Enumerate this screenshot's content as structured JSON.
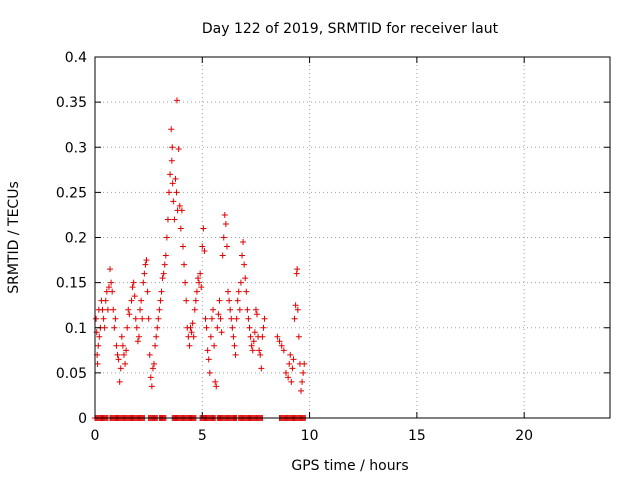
{
  "chart_data": {
    "type": "scatter",
    "title": "Day 122 of 2019, SRMTID for receiver laut",
    "xlabel": "GPS time / hours",
    "ylabel": "SRMTID / TECUs",
    "xlim": [
      0,
      24
    ],
    "ylim": [
      0,
      0.4
    ],
    "xticks": [
      0,
      5,
      10,
      15,
      20
    ],
    "xtick_labels": [
      "0",
      "5",
      "10",
      "15",
      "20"
    ],
    "yticks": [
      0,
      0.05,
      0.1,
      0.15,
      0.2,
      0.25,
      0.3,
      0.35,
      0.4
    ],
    "ytick_labels": [
      "0",
      "0.05",
      "0.1",
      "0.15",
      "0.2",
      "0.25",
      "0.3",
      "0.35",
      "0.4"
    ],
    "grid": true,
    "marker": "+",
    "series": [
      {
        "name": "SRMTID",
        "color": "#e00000",
        "points": [
          [
            0.05,
            0.11
          ],
          [
            0.08,
            0.095
          ],
          [
            0.1,
            0.07
          ],
          [
            0.12,
            0.06
          ],
          [
            0.15,
            0.08
          ],
          [
            0.18,
            0.12
          ],
          [
            0.2,
            0.09
          ],
          [
            0.25,
            0.1
          ],
          [
            0.3,
            0.13
          ],
          [
            0.35,
            0.12
          ],
          [
            0.4,
            0.11
          ],
          [
            0.45,
            0.1
          ],
          [
            0.5,
            0.13
          ],
          [
            0.55,
            0.14
          ],
          [
            0.6,
            0.12
          ],
          [
            0.65,
            0.145
          ],
          [
            0.7,
            0.165
          ],
          [
            0.75,
            0.15
          ],
          [
            0.8,
            0.14
          ],
          [
            0.85,
            0.12
          ],
          [
            0.9,
            0.1
          ],
          [
            0.95,
            0.11
          ],
          [
            1.0,
            0.08
          ],
          [
            1.05,
            0.07
          ],
          [
            1.1,
            0.065
          ],
          [
            1.15,
            0.04
          ],
          [
            1.2,
            0.055
          ],
          [
            1.25,
            0.09
          ],
          [
            1.3,
            0.08
          ],
          [
            1.35,
            0.07
          ],
          [
            1.4,
            0.06
          ],
          [
            1.45,
            0.075
          ],
          [
            1.5,
            0.1
          ],
          [
            1.55,
            0.12
          ],
          [
            1.6,
            0.115
          ],
          [
            1.7,
            0.13
          ],
          [
            1.75,
            0.145
          ],
          [
            1.8,
            0.15
          ],
          [
            1.85,
            0.135
          ],
          [
            1.9,
            0.11
          ],
          [
            1.95,
            0.1
          ],
          [
            2.0,
            0.085
          ],
          [
            2.05,
            0.09
          ],
          [
            2.1,
            0.12
          ],
          [
            2.15,
            0.13
          ],
          [
            2.2,
            0.11
          ],
          [
            2.25,
            0.15
          ],
          [
            2.3,
            0.16
          ],
          [
            2.35,
            0.17
          ],
          [
            2.4,
            0.175
          ],
          [
            2.45,
            0.14
          ],
          [
            2.5,
            0.11
          ],
          [
            2.55,
            0.07
          ],
          [
            2.6,
            0.045
          ],
          [
            2.65,
            0.035
          ],
          [
            2.7,
            0.055
          ],
          [
            2.75,
            0.06
          ],
          [
            2.8,
            0.08
          ],
          [
            2.85,
            0.09
          ],
          [
            2.9,
            0.1
          ],
          [
            2.95,
            0.11
          ],
          [
            3.0,
            0.12
          ],
          [
            3.05,
            0.13
          ],
          [
            3.1,
            0.14
          ],
          [
            3.15,
            0.155
          ],
          [
            3.2,
            0.16
          ],
          [
            3.25,
            0.17
          ],
          [
            3.3,
            0.18
          ],
          [
            3.35,
            0.2
          ],
          [
            3.4,
            0.22
          ],
          [
            3.45,
            0.25
          ],
          [
            3.5,
            0.27
          ],
          [
            3.55,
            0.32
          ],
          [
            3.58,
            0.285
          ],
          [
            3.6,
            0.3
          ],
          [
            3.62,
            0.26
          ],
          [
            3.65,
            0.24
          ],
          [
            3.7,
            0.22
          ],
          [
            3.75,
            0.265
          ],
          [
            3.8,
            0.25
          ],
          [
            3.82,
            0.352
          ],
          [
            3.85,
            0.23
          ],
          [
            3.9,
            0.298
          ],
          [
            3.95,
            0.235
          ],
          [
            4.0,
            0.21
          ],
          [
            4.05,
            0.23
          ],
          [
            4.1,
            0.19
          ],
          [
            4.15,
            0.17
          ],
          [
            4.2,
            0.15
          ],
          [
            4.25,
            0.13
          ],
          [
            4.3,
            0.1
          ],
          [
            4.35,
            0.09
          ],
          [
            4.4,
            0.08
          ],
          [
            4.45,
            0.1
          ],
          [
            4.5,
            0.095
          ],
          [
            4.55,
            0.105
          ],
          [
            4.6,
            0.09
          ],
          [
            4.65,
            0.12
          ],
          [
            4.7,
            0.13
          ],
          [
            4.75,
            0.14
          ],
          [
            4.8,
            0.155
          ],
          [
            4.85,
            0.15
          ],
          [
            4.9,
            0.16
          ],
          [
            4.95,
            0.145
          ],
          [
            5.0,
            0.19
          ],
          [
            5.05,
            0.21
          ],
          [
            5.1,
            0.185
          ],
          [
            5.15,
            0.11
          ],
          [
            5.2,
            0.1
          ],
          [
            5.25,
            0.075
          ],
          [
            5.3,
            0.065
          ],
          [
            5.35,
            0.05
          ],
          [
            5.4,
            0.09
          ],
          [
            5.45,
            0.11
          ],
          [
            5.5,
            0.12
          ],
          [
            5.55,
            0.08
          ],
          [
            5.6,
            0.04
          ],
          [
            5.65,
            0.035
          ],
          [
            5.7,
            0.1
          ],
          [
            5.75,
            0.115
          ],
          [
            5.8,
            0.13
          ],
          [
            5.85,
            0.11
          ],
          [
            5.9,
            0.095
          ],
          [
            5.95,
            0.18
          ],
          [
            6.0,
            0.2
          ],
          [
            6.05,
            0.225
          ],
          [
            6.1,
            0.215
          ],
          [
            6.15,
            0.19
          ],
          [
            6.2,
            0.14
          ],
          [
            6.25,
            0.13
          ],
          [
            6.3,
            0.12
          ],
          [
            6.35,
            0.11
          ],
          [
            6.4,
            0.1
          ],
          [
            6.45,
            0.09
          ],
          [
            6.5,
            0.08
          ],
          [
            6.55,
            0.07
          ],
          [
            6.6,
            0.11
          ],
          [
            6.65,
            0.13
          ],
          [
            6.7,
            0.14
          ],
          [
            6.75,
            0.12
          ],
          [
            6.8,
            0.15
          ],
          [
            6.85,
            0.18
          ],
          [
            6.9,
            0.195
          ],
          [
            6.95,
            0.17
          ],
          [
            7.0,
            0.155
          ],
          [
            7.05,
            0.14
          ],
          [
            7.1,
            0.12
          ],
          [
            7.15,
            0.11
          ],
          [
            7.2,
            0.1
          ],
          [
            7.25,
            0.09
          ],
          [
            7.3,
            0.08
          ],
          [
            7.35,
            0.075
          ],
          [
            7.4,
            0.085
          ],
          [
            7.45,
            0.095
          ],
          [
            7.5,
            0.12
          ],
          [
            7.55,
            0.115
          ],
          [
            7.6,
            0.09
          ],
          [
            7.65,
            0.075
          ],
          [
            7.7,
            0.07
          ],
          [
            7.75,
            0.055
          ],
          [
            7.8,
            0.09
          ],
          [
            7.85,
            0.1
          ],
          [
            7.9,
            0.11
          ],
          [
            8.5,
            0.09
          ],
          [
            8.6,
            0.085
          ],
          [
            8.7,
            0.08
          ],
          [
            8.8,
            0.075
          ],
          [
            8.9,
            0.05
          ],
          [
            9.0,
            0.045
          ],
          [
            9.05,
            0.06
          ],
          [
            9.1,
            0.07
          ],
          [
            9.15,
            0.04
          ],
          [
            9.2,
            0.055
          ],
          [
            9.25,
            0.065
          ],
          [
            9.3,
            0.11
          ],
          [
            9.35,
            0.125
          ],
          [
            9.4,
            0.16
          ],
          [
            9.42,
            0.165
          ],
          [
            9.45,
            0.12
          ],
          [
            9.5,
            0.09
          ],
          [
            9.55,
            0.06
          ],
          [
            9.6,
            0.03
          ],
          [
            9.65,
            0.04
          ],
          [
            9.7,
            0.05
          ],
          [
            9.75,
            0.06
          ]
        ],
        "zero_intervals": [
          [
            0.0,
            0.6
          ],
          [
            0.7,
            2.3
          ],
          [
            2.5,
            2.9
          ],
          [
            3.0,
            3.3
          ],
          [
            3.6,
            4.7
          ],
          [
            4.9,
            5.6
          ],
          [
            5.7,
            6.6
          ],
          [
            6.7,
            7.8
          ],
          [
            8.6,
            9.8
          ]
        ]
      }
    ]
  }
}
